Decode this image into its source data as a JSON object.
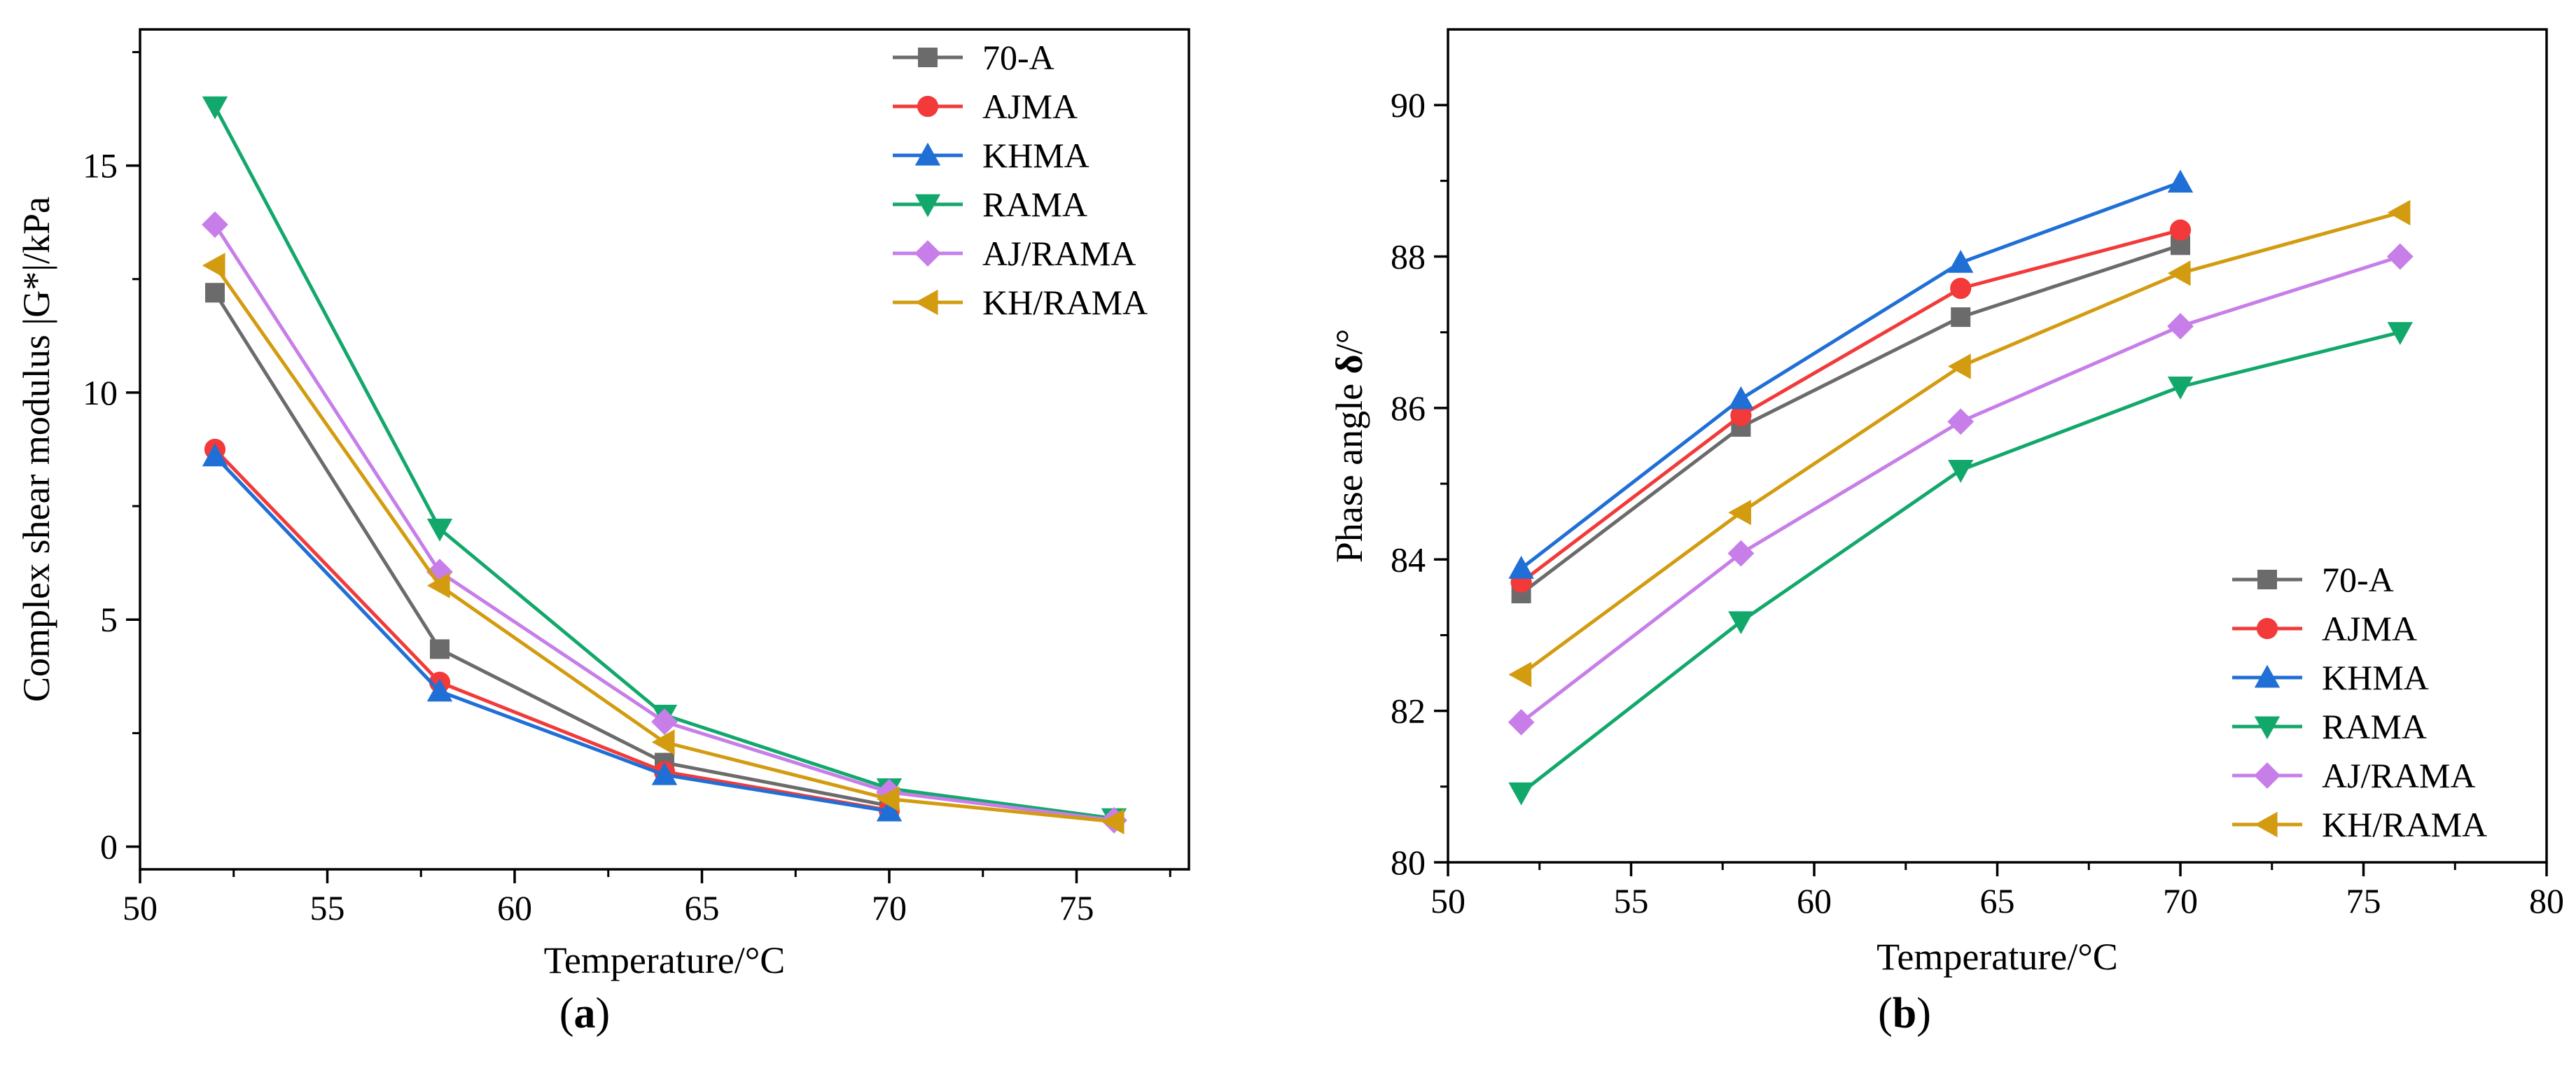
{
  "chart_data": [
    {
      "type": "line",
      "panel": "a",
      "caption_letter": "a",
      "title": "",
      "xlabel": "Temperature/°C",
      "ylabel": "Complex shear modulus |G*|/kPa",
      "xlim": [
        50,
        78
      ],
      "ylim": [
        -0.5,
        18
      ],
      "xticks": [
        50,
        55,
        60,
        65,
        70,
        75
      ],
      "yticks": [
        0,
        5,
        10,
        15
      ],
      "legend_position": "top-right",
      "series": [
        {
          "name": "70-A",
          "color": "#6b6b6b",
          "marker": "square",
          "x": [
            52,
            58,
            64,
            70
          ],
          "values": [
            12.2,
            4.35,
            1.85,
            0.9
          ]
        },
        {
          "name": "AJMA",
          "color": "#f23a3a",
          "marker": "circle",
          "x": [
            52,
            58,
            64,
            70
          ],
          "values": [
            8.75,
            3.62,
            1.65,
            0.8
          ]
        },
        {
          "name": "KHMA",
          "color": "#1f6fd6",
          "marker": "triangle-up",
          "x": [
            52,
            58,
            64,
            70
          ],
          "values": [
            8.6,
            3.42,
            1.58,
            0.78
          ]
        },
        {
          "name": "RAMA",
          "color": "#13a86b",
          "marker": "triangle-down",
          "x": [
            52,
            58,
            64,
            70,
            76
          ],
          "values": [
            16.3,
            7.0,
            2.9,
            1.28,
            0.62
          ]
        },
        {
          "name": "AJ/RAMA",
          "color": "#c77ee8",
          "marker": "diamond",
          "x": [
            52,
            58,
            64,
            70,
            76
          ],
          "values": [
            13.7,
            6.05,
            2.75,
            1.2,
            0.58
          ]
        },
        {
          "name": "KH/RAMA",
          "color": "#d39b0f",
          "marker": "triangle-left",
          "x": [
            52,
            58,
            64,
            70,
            76
          ],
          "values": [
            12.8,
            5.75,
            2.3,
            1.05,
            0.55
          ]
        }
      ]
    },
    {
      "type": "line",
      "panel": "b",
      "caption_letter": "b",
      "title": "",
      "xlabel": "Temperature/°C",
      "ylabel": "Phase angle δ/°",
      "ylabel_main": "Phase angle ",
      "ylabel_symbol": "δ",
      "ylabel_unit": "/°",
      "xlim": [
        50,
        80
      ],
      "ylim": [
        80,
        91
      ],
      "xticks": [
        50,
        55,
        60,
        65,
        70,
        75,
        80
      ],
      "yticks": [
        80,
        82,
        84,
        86,
        88,
        90
      ],
      "legend_position": "bottom-right",
      "series": [
        {
          "name": "70-A",
          "color": "#6b6b6b",
          "marker": "square",
          "x": [
            52,
            58,
            64,
            70
          ],
          "values": [
            83.55,
            85.75,
            87.2,
            88.15
          ]
        },
        {
          "name": "AJMA",
          "color": "#f23a3a",
          "marker": "circle",
          "x": [
            52,
            58,
            64,
            70
          ],
          "values": [
            83.7,
            85.9,
            87.58,
            88.35
          ]
        },
        {
          "name": "KHMA",
          "color": "#1f6fd6",
          "marker": "triangle-up",
          "x": [
            52,
            58,
            64,
            70
          ],
          "values": [
            83.88,
            86.12,
            87.92,
            88.98
          ]
        },
        {
          "name": "RAMA",
          "color": "#13a86b",
          "marker": "triangle-down",
          "x": [
            52,
            58,
            64,
            70,
            76
          ],
          "values": [
            80.92,
            83.18,
            85.18,
            86.28,
            87.0
          ]
        },
        {
          "name": "AJ/RAMA",
          "color": "#c77ee8",
          "marker": "diamond",
          "x": [
            52,
            58,
            64,
            70,
            76
          ],
          "values": [
            81.85,
            84.08,
            85.82,
            87.08,
            88.0
          ]
        },
        {
          "name": "KH/RAMA",
          "color": "#d39b0f",
          "marker": "triangle-left",
          "x": [
            52,
            58,
            64,
            70,
            76
          ],
          "values": [
            82.48,
            84.62,
            86.55,
            87.78,
            88.58
          ]
        }
      ]
    }
  ]
}
